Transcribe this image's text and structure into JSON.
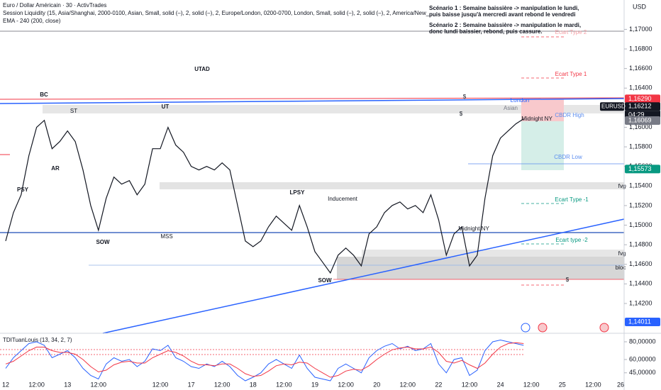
{
  "chart_data": [
    {
      "type": "line",
      "title": "Euro / Dollar Américain · 30 · ActivTrades",
      "indicators": [
        "Session Liquidity (15, Asia/Shanghai, 2000-0100, Asian, Small, solid (–), 2, solid (–), 2, Europe/London, 0200-0700, London, Small, solid (–), 2, solid (–), 2, America/New_",
        "EMA - 240 (200, close)"
      ],
      "currency": "USD",
      "categories": [
        "12",
        null,
        null,
        null,
        "12:00",
        null,
        null,
        null,
        "13",
        null,
        null,
        null,
        "12:00",
        null,
        null,
        null,
        null,
        null,
        null,
        null,
        "12:00",
        null,
        null,
        null,
        "17",
        null,
        null,
        null,
        "12:00",
        null,
        null,
        null,
        "18",
        null,
        null,
        null,
        "12:00",
        null,
        null,
        null,
        "19",
        null,
        null,
        null,
        "12:00",
        null,
        null,
        null,
        "20",
        null,
        null,
        null,
        "12:00",
        null,
        null,
        null,
        "22",
        null,
        null,
        null,
        "12:00",
        null,
        null,
        null,
        "24",
        null,
        null,
        null,
        "12:00",
        null,
        null,
        null,
        "25",
        null,
        null,
        null,
        "12:00",
        null,
        null,
        null,
        "26"
      ],
      "series": [
        {
          "name": "EURUSD",
          "color": "#131722",
          "values": [
            1.14838,
            1.15128,
            1.1531,
            1.15709,
            1.15999,
            1.16071,
            1.15781,
            1.15854,
            1.15963,
            1.15854,
            1.15564,
            1.15201,
            1.14947,
            1.15274,
            1.15491,
            1.15419,
            1.15455,
            1.1531,
            1.15419,
            1.15781,
            1.15781,
            1.15999,
            1.15818,
            1.15745,
            1.156,
            1.15564,
            1.156,
            1.15564,
            1.15636,
            1.15564,
            1.15201,
            1.14838,
            1.1478,
            1.14838,
            1.14983,
            1.15092,
            1.1502,
            1.14947,
            1.15201,
            1.14983,
            1.1473,
            1.14621,
            1.14512,
            1.14693,
            1.14766,
            1.14693,
            1.14584,
            1.14911,
            1.14983,
            1.15128,
            1.15201,
            1.15237,
            1.15165,
            1.15201,
            1.15128,
            1.1531,
            1.15056,
            1.14693,
            1.14911,
            1.14983,
            1.14584,
            1.14693,
            1.15274,
            1.15709,
            1.1589,
            1.15963,
            1.16035,
            1.16086,
            null,
            null,
            null,
            null,
            null,
            null,
            null,
            null,
            null,
            null,
            null,
            null,
            null
          ]
        }
      ],
      "ylim": [
        1.1391,
        1.173
      ],
      "yticks": [
        {
          "value": 1.142,
          "label": "1,14200"
        },
        {
          "value": 1.144,
          "label": "1,14400"
        },
        {
          "value": 1.146,
          "label": "1,14600"
        },
        {
          "value": 1.148,
          "label": "1,14800"
        },
        {
          "value": 1.15,
          "label": "1,15000"
        },
        {
          "value": 1.152,
          "label": "1,15200"
        },
        {
          "value": 1.154,
          "label": "1,15400"
        },
        {
          "value": 1.156,
          "label": "1,15600"
        },
        {
          "value": 1.158,
          "label": "1,15800"
        },
        {
          "value": 1.16,
          "label": "1,16000"
        },
        {
          "value": 1.162,
          "label": "1,16200"
        },
        {
          "value": 1.164,
          "label": "1,16400"
        },
        {
          "value": 1.166,
          "label": "1,16600"
        },
        {
          "value": 1.168,
          "label": "1,16800"
        },
        {
          "value": 1.17,
          "label": "1,17000"
        }
      ],
      "grid": false,
      "price_labels": [
        {
          "value": 1.1629,
          "label": "1,16290",
          "color": "#f23645"
        },
        {
          "value": 1.16212,
          "label": "1,16212",
          "color": "#131722",
          "symbol": "EURUSD",
          "countdown": "04:29"
        },
        {
          "value": 1.16069,
          "label": "1,16069",
          "color": "#787b86"
        },
        {
          "value": 1.15573,
          "label": "1,15573",
          "color": "#089981"
        },
        {
          "value": 1.14011,
          "label": "1,14011",
          "color": "#2962ff"
        }
      ],
      "annotations": [
        "UTAD",
        "BC",
        "ST",
        "UT",
        "AR",
        "PSY",
        "LPSY",
        "Inducement",
        "MSS",
        "SOW",
        "SOW",
        "Midnight NY",
        "Midnight NY",
        "London",
        "Asian",
        "CBDR High",
        "CBDR Low",
        "Ecart Type 1",
        "Ecart Type -1",
        "Ecart type -2",
        "fvg",
        "fvg",
        "bloc",
        "$",
        "$",
        "$",
        "Ecart Type 2"
      ],
      "scenarios": [
        "Scénario 1 : Semaine baissière -> manipulation le lundi,",
        "puis baisse jusqu'à mercredi avant rebond le vendredi",
        "Scénario 2 : Semaine baissière -> manipulation le mardi,",
        "donc lundi baissier, rebond, puis cassure."
      ]
    },
    {
      "type": "line",
      "title": "TDITuanLouis (13, 34, 2, 7)",
      "series": [
        {
          "color": "#2962ff",
          "values": [
            50,
            62,
            70,
            78,
            80,
            76,
            62,
            66,
            70,
            62,
            50,
            42,
            38,
            55,
            62,
            58,
            60,
            52,
            58,
            72,
            70,
            76,
            62,
            58,
            52,
            50,
            55,
            52,
            58,
            52,
            42,
            36,
            40,
            45,
            55,
            60,
            55,
            50,
            65,
            50,
            40,
            38,
            36,
            50,
            55,
            50,
            45,
            62,
            70,
            75,
            78,
            72,
            75,
            70,
            72,
            78,
            55,
            45,
            60,
            62,
            42,
            48,
            70,
            80,
            82,
            80,
            78,
            76,
            null,
            null,
            null,
            null,
            null,
            null,
            null,
            null,
            null,
            null,
            null,
            null,
            null
          ]
        },
        {
          "color": "#f23645",
          "values": [
            55,
            58,
            64,
            70,
            74,
            74,
            70,
            68,
            68,
            66,
            60,
            52,
            46,
            48,
            54,
            57,
            58,
            56,
            56,
            62,
            66,
            70,
            68,
            64,
            58,
            54,
            54,
            53,
            55,
            55,
            50,
            44,
            41,
            42,
            47,
            53,
            55,
            54,
            57,
            56,
            50,
            45,
            40,
            42,
            47,
            49,
            48,
            53,
            60,
            66,
            71,
            73,
            74,
            72,
            72,
            74,
            68,
            58,
            56,
            59,
            54,
            50,
            56,
            66,
            74,
            78,
            79,
            78,
            null,
            null,
            null,
            null,
            null,
            null,
            null,
            null,
            null,
            null,
            null,
            null,
            null
          ]
        }
      ],
      "ylim": [
        33.6,
        89.6
      ],
      "yticks": [
        {
          "value": 80,
          "label": "80,00000"
        },
        {
          "value": 60,
          "label": "60,00000"
        },
        {
          "value": 45,
          "label": "45,00000"
        }
      ]
    }
  ]
}
